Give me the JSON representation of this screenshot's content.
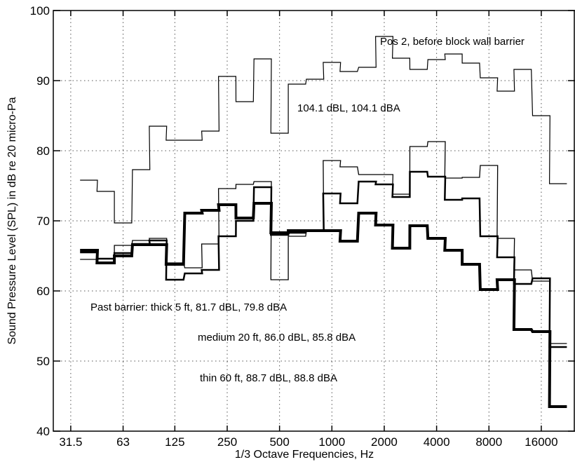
{
  "chart_data": {
    "type": "line",
    "xlabel": "1/3 Octave Frequencies, Hz",
    "ylabel": "Sound Pressure Level (SPL) in dB re 20 micro-Pa",
    "x_scale": "log",
    "xlim": [
      25,
      25000
    ],
    "ylim": [
      40,
      100
    ],
    "xticks": [
      31.5,
      63,
      125,
      250,
      500,
      1000,
      2000,
      4000,
      8000,
      16000
    ],
    "xtick_labels": [
      "31.5",
      "63",
      "125",
      "250",
      "500",
      "1000",
      "2000",
      "4000",
      "8000",
      "16000"
    ],
    "yticks": [
      40,
      50,
      60,
      70,
      80,
      90,
      100
    ],
    "ytick_labels": [
      "40",
      "50",
      "60",
      "70",
      "80",
      "90",
      "100"
    ],
    "grid": true,
    "step": true,
    "x": [
      40,
      50,
      63,
      80,
      100,
      125,
      160,
      200,
      250,
      315,
      400,
      500,
      630,
      800,
      1000,
      1250,
      1600,
      2000,
      2500,
      3150,
      4000,
      5000,
      6300,
      8000,
      10000,
      12500,
      16000,
      20000
    ],
    "series": [
      {
        "name": "",
        "linewidth": 1.2,
        "values": [
          75.8,
          74.2,
          69.7,
          77.3,
          83.5,
          81.5,
          81.5,
          82.8,
          90.6,
          87.0,
          93.1,
          82.5,
          89.5,
          90.2,
          92.6,
          91.3,
          91.9,
          96.3,
          93.2,
          91.6,
          93.0,
          93.8,
          92.5,
          90.4,
          88.5,
          91.6,
          85.0,
          75.3
        ]
      },
      {
        "name": "",
        "linewidth": 1.3,
        "values": [
          64.5,
          64.1,
          66.5,
          67.2,
          67.5,
          64.0,
          63.3,
          66.7,
          74.6,
          75.2,
          75.6,
          61.6,
          67.8,
          68.5,
          78.6,
          77.7,
          76.6,
          76.6,
          73.8,
          80.6,
          81.3,
          76.1,
          76.2,
          77.9,
          67.5,
          63.0,
          61.4,
          52.5
        ]
      },
      {
        "name": "",
        "linewidth": 2.5,
        "values": [
          65.5,
          64.6,
          65.4,
          66.7,
          67.2,
          61.6,
          62.5,
          63.0,
          67.8,
          70.0,
          74.8,
          68.0,
          68.3,
          68.6,
          73.9,
          72.5,
          75.6,
          75.2,
          73.4,
          77.0,
          76.3,
          73.0,
          73.2,
          67.8,
          64.8,
          61.0,
          61.8,
          52.0
        ]
      },
      {
        "name": "",
        "linewidth": 4.0,
        "values": [
          65.8,
          64.0,
          65.0,
          66.6,
          66.6,
          63.8,
          71.1,
          71.5,
          72.3,
          70.4,
          72.5,
          68.3,
          68.6,
          68.6,
          68.6,
          67.1,
          71.1,
          69.4,
          66.1,
          69.3,
          67.5,
          65.8,
          63.8,
          60.2,
          61.6,
          54.5,
          54.2,
          43.5
        ]
      }
    ],
    "annotations": {
      "pos2": "Pos 2, before block wall barrier",
      "pos2_levels": "104.1 dBL, 104.1 dBA",
      "thick": "Past barrier: thick 5 ft, 81.7 dBL, 79.8 dBA",
      "medium": "medium  20 ft, 86.0 dBL, 85.8 dBA",
      "thin": "thin  60 ft, 88.7 dBL, 88.8 dBA"
    }
  }
}
